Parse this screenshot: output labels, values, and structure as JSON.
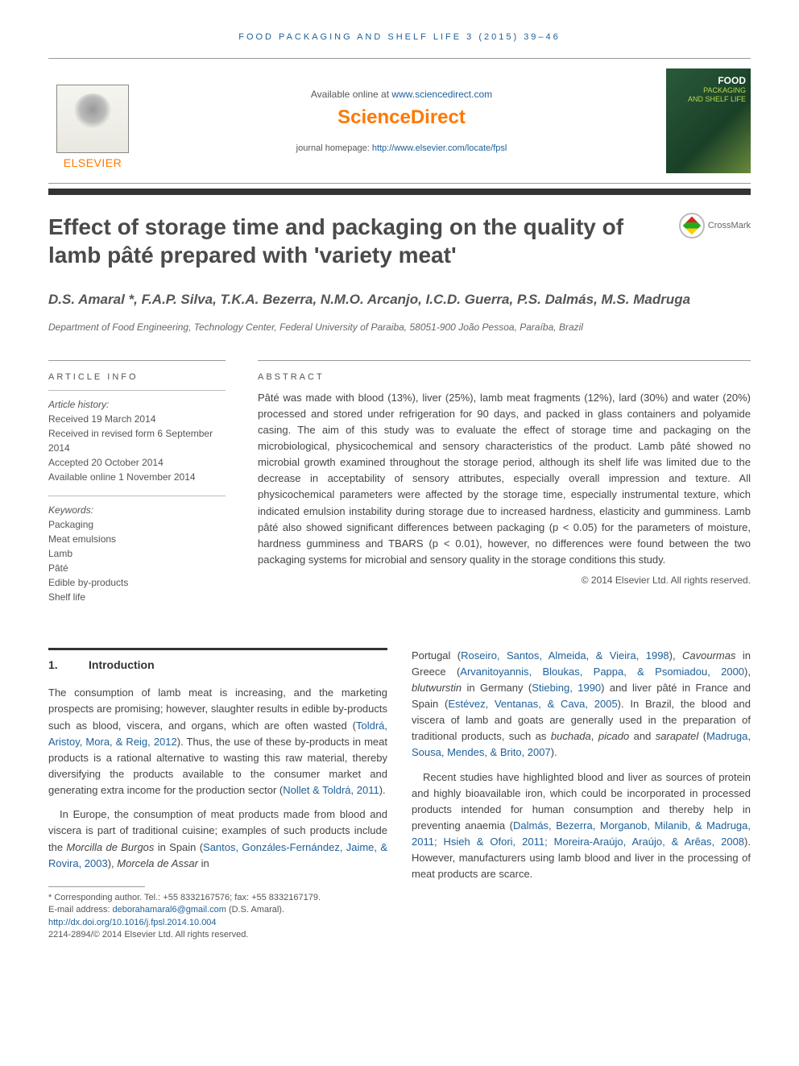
{
  "journal_header": "FOOD PACKAGING AND SHELF LIFE 3 (2015) 39–46",
  "banner": {
    "available_text": "Available online at ",
    "available_url": "www.sciencedirect.com",
    "sciencedirect": "ScienceDirect",
    "homepage_label": "journal homepage: ",
    "homepage_url": "http://www.elsevier.com/locate/fpsl",
    "elsevier": "ELSEVIER",
    "cover_food": "FOOD",
    "cover_packaging": "PACKAGING",
    "cover_shelf": "AND SHELF LIFE"
  },
  "crossmark": "CrossMark",
  "title": "Effect of storage time and packaging on the quality of lamb pâté prepared with 'variety meat'",
  "authors": "D.S. Amaral *, F.A.P. Silva, T.K.A. Bezerra, N.M.O. Arcanjo, I.C.D. Guerra, P.S. Dalmás, M.S. Madruga",
  "affiliation": "Department of Food Engineering, Technology Center, Federal University of Paraiba, 58051-900 João Pessoa, Paraíba, Brazil",
  "article_info": {
    "heading": "ARTICLE INFO",
    "history_label": "Article history:",
    "received": "Received 19 March 2014",
    "revised": "Received in revised form 6 September 2014",
    "accepted": "Accepted 20 October 2014",
    "online": "Available online 1 November 2014",
    "keywords_label": "Keywords:",
    "kw1": "Packaging",
    "kw2": "Meat emulsions",
    "kw3": "Lamb",
    "kw4": "Pâté",
    "kw5": "Edible by-products",
    "kw6": "Shelf life"
  },
  "abstract": {
    "heading": "ABSTRACT",
    "text": "Pâté was made with blood (13%), liver (25%), lamb meat fragments (12%), lard (30%) and water (20%) processed and stored under refrigeration for 90 days, and packed in glass containers and polyamide casing. The aim of this study was to evaluate the effect of storage time and packaging on the microbiological, physicochemical and sensory characteristics of the product. Lamb pâté showed no microbial growth examined throughout the storage period, although its shelf life was limited due to the decrease in acceptability of sensory attributes, especially overall impression and texture. All physicochemical parameters were affected by the storage time, especially instrumental texture, which indicated emulsion instability during storage due to increased hardness, elasticity and gumminess. Lamb pâté also showed significant differences between packaging (p < 0.05) for the parameters of moisture, hardness gumminess and TBARS (p < 0.01), however, no differences were found between the two packaging systems for microbial and sensory quality in the storage conditions this study.",
    "copyright": "© 2014 Elsevier Ltd. All rights reserved."
  },
  "section1": {
    "num": "1.",
    "title": "Introduction"
  },
  "body": {
    "p1a": "The consumption of lamb meat is increasing, and the marketing prospects are promising; however, slaughter results in edible by-products such as blood, viscera, and organs, which are often wasted (",
    "p1r1": "Toldrá, Aristoy, Mora, & Reig, 2012",
    "p1b": "). Thus, the use of these by-products in meat products is a rational alternative to wasting this raw material, thereby diversifying the products available to the consumer market and generating extra income for the production sector (",
    "p1r2": "Nollet & Toldrá, 2011",
    "p1c": ").",
    "p2a": "In Europe, the consumption of meat products made from blood and viscera is part of traditional cuisine; examples of such products include the ",
    "p2i1": "Morcilla de Burgos",
    "p2b": " in Spain (",
    "p2r1": "Santos, Gonzáles-Fernández, Jaime, & Rovira, 2003",
    "p2c": "), ",
    "p2i2": "Morcela de Assar",
    "p2d": " in",
    "p3a": "Portugal (",
    "p3r1": "Roseiro, Santos, Almeida, & Vieira, 1998",
    "p3b": "), ",
    "p3i1": "Cavourmas",
    "p3c": " in Greece (",
    "p3r2": "Arvanitoyannis, Bloukas, Pappa, & Psomiadou, 2000",
    "p3d": "), ",
    "p3i2": "blutwurstin",
    "p3e": " in Germany (",
    "p3r3": "Stiebing, 1990",
    "p3f": ") and liver pâté in France and Spain (",
    "p3r4": "Estévez, Ventanas, & Cava, 2005",
    "p3g": "). In Brazil, the blood and viscera of lamb and goats are generally used in the preparation of traditional products, such as ",
    "p3i3": "buchada",
    "p3h": ", ",
    "p3i4": "picado",
    "p3i": " and ",
    "p3i5": "sarapatel",
    "p3j": " (",
    "p3r5": "Madruga, Sousa, Mendes, & Brito, 2007",
    "p3k": ").",
    "p4a": "Recent studies have highlighted blood and liver as sources of protein and highly bioavailable iron, which could be incorporated in processed products intended for human consumption and thereby help in preventing anaemia (",
    "p4r1": "Dalmás, Bezerra, Morganob, Milanib, & Madruga, 2011; Hsieh & Ofori, 2011; Moreira-Araújo, Araújo, & Arêas, 2008",
    "p4b": "). However, manufacturers using lamb blood and liver in the processing of meat products are scarce."
  },
  "footnote": {
    "corr": "* Corresponding author. Tel.: +55 8332167576; fax: +55 8332167179.",
    "email_label": "E-mail address: ",
    "email": "deborahamaral6@gmail.com",
    "email_after": " (D.S. Amaral).",
    "doi": "http://dx.doi.org/10.1016/j.fpsl.2014.10.004",
    "issn": "2214-2894/© 2014 Elsevier Ltd. All rights reserved."
  }
}
